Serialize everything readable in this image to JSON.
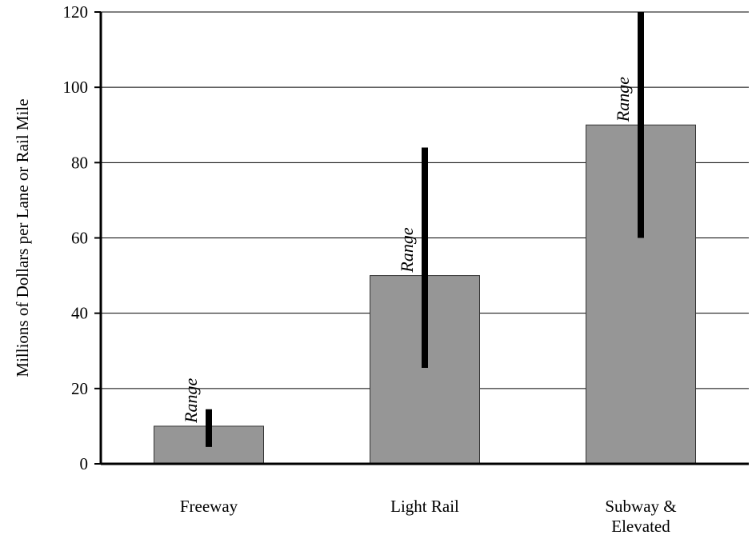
{
  "chart_data": {
    "type": "bar",
    "title": "",
    "xlabel": "",
    "ylabel": "Millions of Dollars per Lane or Rail Mile",
    "ylim": [
      0,
      120
    ],
    "yticks": [
      0,
      20,
      40,
      60,
      80,
      100,
      120
    ],
    "grid": true,
    "categories": [
      {
        "line1": "Freeway",
        "line2": ""
      },
      {
        "line1": "Light Rail",
        "line2": ""
      },
      {
        "line1": "Subway &",
        "line2": "Elevated"
      }
    ],
    "values": [
      10,
      50,
      90
    ],
    "ranges": [
      {
        "low": 4.5,
        "high": 14.5
      },
      {
        "low": 25.5,
        "high": 84
      },
      {
        "low": 60,
        "high": 120
      }
    ],
    "range_label": "Range",
    "colors": {
      "bar_fill": "#969696",
      "bar_stroke": "#333333",
      "range_line": "#000000",
      "grid": "#000000",
      "axis": "#000000"
    }
  }
}
